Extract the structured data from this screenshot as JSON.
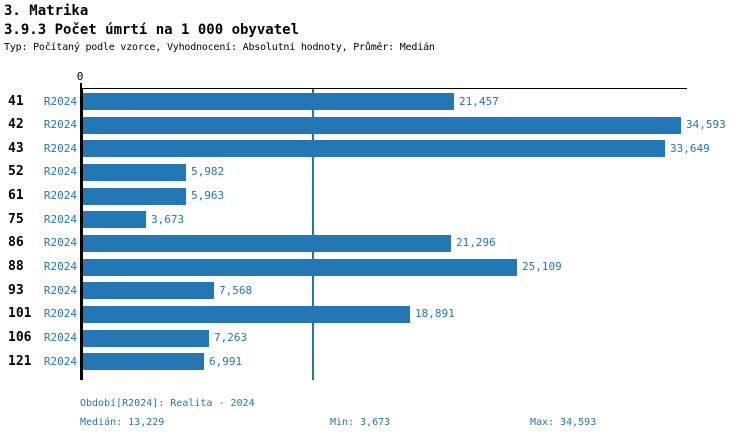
{
  "header": {
    "title": "3. Matrika",
    "subtitle": "3.9.3 Počet úmrtí na 1 000 obyvatel",
    "meta": "Typ: Počítaný podle vzorce, Vyhodnocení: Absolutní hodnoty, Průměr: Medián"
  },
  "chart_data": {
    "type": "bar",
    "orientation": "horizontal",
    "title": "3.9.3 Počet úmrtí na 1 000 obyvatel",
    "series_label": "R2024",
    "categories": [
      "41",
      "42",
      "43",
      "52",
      "61",
      "75",
      "86",
      "88",
      "93",
      "101",
      "106",
      "121"
    ],
    "values": [
      21457,
      34593,
      33649,
      5982,
      5963,
      3673,
      21296,
      25109,
      7568,
      18891,
      7263,
      6991
    ],
    "value_labels": [
      "21,457",
      "34,593",
      "33,649",
      "5,982",
      "5,963",
      "3,673",
      "21,296",
      "25,109",
      "7,568",
      "18,891",
      "7,263",
      "6,991"
    ],
    "axis_zero_label": "0",
    "xlim": [
      0,
      35000
    ],
    "median_value": 13229,
    "bar_color": "#2277b4",
    "median_line_color": "#1f77b4",
    "grid": false,
    "legend_position": "none"
  },
  "footer": {
    "period": "Období[R2024]: Realita - 2024",
    "median": "Medián: 13,229",
    "min": "Min: 3,673",
    "max": "Max: 34,593"
  }
}
